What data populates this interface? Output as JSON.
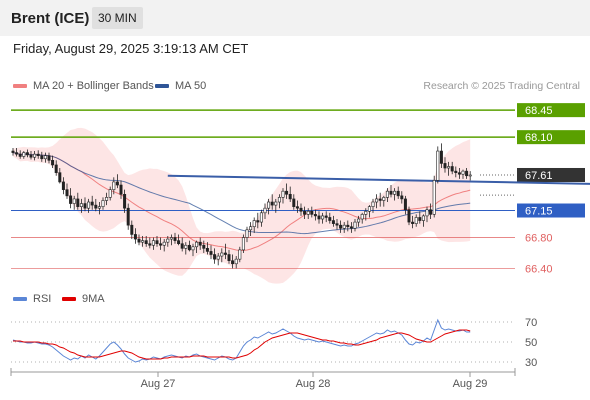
{
  "header": {
    "title": "Brent (ICE)",
    "interval": "30 MIN",
    "datetime": "Friday, August 29, 2025 3:19:13 AM CET"
  },
  "credit": "Research © 2025 Trading Central",
  "colors": {
    "bollinger": "#f08080",
    "band_fill": "#fde0e0",
    "ma50": "#2f5597",
    "resistance": "#5aa000",
    "support": "#2f5fc4",
    "minor_support": "#e06060",
    "current": "#333333",
    "rsi": "#5b86d6",
    "rsi_ma": "#e00000",
    "arrow": "#2f5fb0"
  },
  "legend": {
    "bollinger_label": "MA 20 + Bollinger Bands",
    "ma50_label": "MA 50",
    "rsi_label": "RSI",
    "rsi_ma_label": "9MA"
  },
  "chart_data": [
    {
      "type": "candlestick",
      "title": "Brent (ICE)",
      "interval": "30 MIN",
      "ylim": [
        66.25,
        68.62
      ],
      "x_ticks": [
        "Aug 27",
        "Aug 28",
        "Aug 29"
      ],
      "levels": [
        {
          "value": 68.45,
          "label": "68.45",
          "kind": "resistance"
        },
        {
          "value": 68.1,
          "label": "68.10",
          "kind": "resistance"
        },
        {
          "value": 67.61,
          "label": "67.61",
          "kind": "current"
        },
        {
          "value": 67.15,
          "label": "67.15",
          "kind": "support"
        },
        {
          "value": 66.8,
          "label": "66.80",
          "kind": "minor_support"
        },
        {
          "value": 66.4,
          "label": "66.40",
          "kind": "minor_support"
        }
      ],
      "trendline": [
        {
          "x": 43,
          "y": 67.6
        },
        {
          "x": 222,
          "y": 67.44
        }
      ],
      "arrow": {
        "from": {
          "x": 234,
          "y": 67.61
        },
        "to": {
          "x": 253,
          "y": 68.45
        }
      },
      "candles": [
        [
          67.92,
          67.96,
          67.86,
          67.9
        ],
        [
          67.9,
          67.96,
          67.85,
          67.88
        ],
        [
          67.88,
          67.93,
          67.82,
          67.85
        ],
        [
          67.85,
          67.92,
          67.82,
          67.9
        ],
        [
          67.9,
          67.94,
          67.84,
          67.87
        ],
        [
          67.87,
          67.92,
          67.81,
          67.84
        ],
        [
          67.84,
          67.92,
          67.8,
          67.88
        ],
        [
          67.88,
          67.93,
          67.82,
          67.86
        ],
        [
          67.86,
          67.91,
          67.78,
          67.82
        ],
        [
          67.82,
          67.9,
          67.77,
          67.86
        ],
        [
          67.86,
          67.9,
          67.76,
          67.8
        ],
        [
          67.8,
          67.86,
          67.7,
          67.74
        ],
        [
          67.74,
          67.8,
          67.6,
          67.64
        ],
        [
          67.64,
          67.7,
          67.5,
          67.52
        ],
        [
          67.52,
          67.58,
          67.36,
          67.42
        ],
        [
          67.42,
          67.5,
          67.3,
          67.34
        ],
        [
          67.34,
          67.44,
          67.18,
          67.24
        ],
        [
          67.24,
          67.34,
          67.16,
          67.3
        ],
        [
          67.3,
          67.38,
          67.16,
          67.2
        ],
        [
          67.2,
          67.3,
          67.12,
          67.24
        ],
        [
          67.24,
          67.32,
          67.14,
          67.18
        ],
        [
          67.18,
          67.3,
          67.12,
          67.26
        ],
        [
          67.26,
          67.34,
          67.16,
          67.22
        ],
        [
          67.22,
          67.3,
          67.14,
          67.18
        ],
        [
          67.18,
          67.26,
          67.1,
          67.2
        ],
        [
          67.2,
          67.32,
          67.16,
          67.28
        ],
        [
          67.28,
          67.38,
          67.22,
          67.32
        ],
        [
          67.32,
          67.46,
          67.28,
          67.42
        ],
        [
          67.42,
          67.58,
          67.36,
          67.52
        ],
        [
          67.52,
          67.62,
          67.44,
          67.48
        ],
        [
          67.48,
          67.54,
          67.3,
          67.36
        ],
        [
          67.36,
          67.42,
          67.12,
          67.18
        ],
        [
          67.18,
          67.24,
          66.9,
          66.96
        ],
        [
          66.96,
          67.02,
          66.78,
          66.84
        ],
        [
          66.84,
          66.92,
          66.72,
          66.78
        ],
        [
          66.78,
          66.84,
          66.7,
          66.74
        ],
        [
          66.74,
          66.82,
          66.68,
          66.76
        ],
        [
          66.76,
          66.82,
          66.68,
          66.72
        ],
        [
          66.72,
          66.8,
          66.66,
          66.7
        ],
        [
          66.7,
          66.8,
          66.64,
          66.76
        ],
        [
          66.76,
          66.82,
          66.68,
          66.72
        ],
        [
          66.72,
          66.8,
          66.64,
          66.7
        ],
        [
          66.7,
          66.78,
          66.62,
          66.74
        ],
        [
          66.74,
          66.82,
          66.68,
          66.78
        ],
        [
          66.78,
          66.84,
          66.7,
          66.8
        ],
        [
          66.8,
          66.86,
          66.72,
          66.76
        ],
        [
          66.76,
          66.84,
          66.7,
          66.72
        ],
        [
          66.72,
          66.8,
          66.62,
          66.66
        ],
        [
          66.66,
          66.74,
          66.58,
          66.7
        ],
        [
          66.7,
          66.76,
          66.62,
          66.64
        ],
        [
          66.64,
          66.72,
          66.56,
          66.68
        ],
        [
          66.68,
          66.76,
          66.6,
          66.74
        ],
        [
          66.74,
          66.8,
          66.64,
          66.7
        ],
        [
          66.7,
          66.76,
          66.6,
          66.66
        ],
        [
          66.66,
          66.74,
          66.58,
          66.62
        ],
        [
          66.62,
          66.7,
          66.52,
          66.58
        ],
        [
          66.58,
          66.66,
          66.46,
          66.52
        ],
        [
          66.52,
          66.6,
          66.44,
          66.56
        ],
        [
          66.56,
          66.66,
          66.48,
          66.6
        ],
        [
          66.6,
          66.72,
          66.52,
          66.58
        ],
        [
          66.58,
          66.64,
          66.46,
          66.5
        ],
        [
          66.5,
          66.58,
          66.4,
          66.46
        ],
        [
          66.46,
          66.56,
          66.4,
          66.52
        ],
        [
          66.52,
          66.68,
          66.48,
          66.64
        ],
        [
          66.64,
          66.84,
          66.6,
          66.8
        ],
        [
          66.8,
          66.94,
          66.74,
          66.9
        ],
        [
          66.9,
          67.0,
          66.82,
          66.94
        ],
        [
          66.94,
          67.06,
          66.86,
          67.02
        ],
        [
          67.02,
          67.12,
          66.92,
          67.0
        ],
        [
          67.0,
          67.16,
          66.94,
          67.12
        ],
        [
          67.12,
          67.24,
          67.04,
          67.18
        ],
        [
          67.18,
          67.3,
          67.1,
          67.26
        ],
        [
          67.26,
          67.36,
          67.16,
          67.22
        ],
        [
          67.22,
          67.3,
          67.12,
          67.26
        ],
        [
          67.26,
          67.36,
          67.18,
          67.32
        ],
        [
          67.32,
          67.44,
          67.24,
          67.4
        ],
        [
          67.4,
          67.5,
          67.3,
          67.36
        ],
        [
          67.36,
          67.46,
          67.26,
          67.3
        ],
        [
          67.3,
          67.36,
          67.16,
          67.2
        ],
        [
          67.2,
          67.28,
          67.12,
          67.18
        ],
        [
          67.18,
          67.24,
          67.08,
          67.14
        ],
        [
          67.14,
          67.2,
          67.04,
          67.1
        ],
        [
          67.1,
          67.18,
          67.04,
          67.14
        ],
        [
          67.14,
          67.2,
          67.06,
          67.1
        ],
        [
          67.1,
          67.16,
          67.02,
          67.08
        ],
        [
          67.08,
          67.14,
          66.98,
          67.04
        ],
        [
          67.04,
          67.12,
          66.98,
          67.08
        ],
        [
          67.08,
          67.14,
          67.0,
          67.06
        ],
        [
          67.06,
          67.12,
          66.98,
          67.02
        ],
        [
          67.02,
          67.08,
          66.94,
          66.98
        ],
        [
          66.98,
          67.04,
          66.9,
          66.96
        ],
        [
          66.96,
          67.02,
          66.86,
          66.92
        ],
        [
          66.92,
          67.0,
          66.86,
          66.96
        ],
        [
          66.96,
          67.02,
          66.88,
          66.94
        ],
        [
          66.94,
          67.0,
          66.86,
          66.92
        ],
        [
          66.92,
          67.04,
          66.88,
          67.0
        ],
        [
          67.0,
          67.08,
          66.94,
          67.04
        ],
        [
          67.04,
          67.12,
          66.98,
          67.1
        ],
        [
          67.1,
          67.18,
          67.02,
          67.14
        ],
        [
          67.14,
          67.22,
          67.06,
          67.2
        ],
        [
          67.2,
          67.3,
          67.12,
          67.26
        ],
        [
          67.26,
          67.36,
          67.18,
          67.3
        ],
        [
          67.3,
          67.38,
          67.2,
          67.28
        ],
        [
          67.28,
          67.34,
          67.2,
          67.32
        ],
        [
          67.32,
          67.44,
          67.26,
          67.4
        ],
        [
          67.4,
          67.48,
          67.32,
          67.36
        ],
        [
          67.36,
          67.44,
          67.28,
          67.4
        ],
        [
          67.4,
          67.46,
          67.3,
          67.34
        ],
        [
          67.34,
          67.4,
          67.24,
          67.3
        ],
        [
          67.3,
          67.34,
          67.1,
          67.16
        ],
        [
          67.16,
          67.2,
          66.96,
          67.0
        ],
        [
          67.0,
          67.08,
          66.92,
          66.98
        ],
        [
          66.98,
          67.1,
          66.94,
          67.06
        ],
        [
          67.06,
          67.14,
          66.98,
          67.02
        ],
        [
          67.02,
          67.1,
          66.94,
          67.08
        ],
        [
          67.08,
          67.2,
          67.0,
          67.16
        ],
        [
          67.16,
          67.24,
          67.04,
          67.1
        ],
        [
          67.1,
          67.6,
          67.06,
          67.54
        ],
        [
          67.54,
          67.98,
          67.5,
          67.92
        ],
        [
          67.92,
          68.02,
          67.7,
          67.76
        ],
        [
          67.76,
          67.84,
          67.64,
          67.7
        ],
        [
          67.7,
          67.78,
          67.6,
          67.72
        ],
        [
          67.72,
          67.78,
          67.62,
          67.66
        ],
        [
          67.66,
          67.72,
          67.58,
          67.64
        ],
        [
          67.64,
          67.7,
          67.56,
          67.62
        ],
        [
          67.62,
          67.68,
          67.56,
          67.66
        ],
        [
          67.66,
          67.7,
          67.56,
          67.6
        ],
        [
          67.6,
          67.66,
          67.54,
          67.61
        ]
      ]
    },
    {
      "type": "line",
      "title": "RSI",
      "ylim": [
        20,
        80
      ],
      "y_ticks": [
        70,
        50,
        30
      ],
      "series": [
        {
          "name": "RSI",
          "values": [
            52,
            51,
            50,
            50,
            49,
            49,
            50,
            49,
            48,
            48,
            47,
            45,
            42,
            39,
            36,
            34,
            32,
            34,
            33,
            36,
            34,
            37,
            35,
            33,
            36,
            40,
            44,
            48,
            50,
            47,
            43,
            38,
            34,
            32,
            30,
            31,
            33,
            32,
            33,
            35,
            34,
            33,
            35,
            36,
            37,
            36,
            35,
            34,
            36,
            35,
            37,
            38,
            36,
            35,
            34,
            33,
            32,
            34,
            36,
            35,
            33,
            32,
            34,
            40,
            46,
            50,
            52,
            55,
            54,
            56,
            58,
            60,
            58,
            59,
            61,
            63,
            61,
            59,
            56,
            54,
            53,
            52,
            53,
            52,
            51,
            50,
            51,
            50,
            49,
            48,
            47,
            46,
            47,
            46,
            46,
            48,
            49,
            51,
            53,
            55,
            57,
            59,
            58,
            59,
            62,
            60,
            61,
            59,
            57,
            52,
            48,
            47,
            50,
            49,
            51,
            54,
            52,
            62,
            72,
            64,
            62,
            63,
            62,
            61,
            61,
            62,
            60,
            60
          ]
        },
        {
          "name": "9MA",
          "values": [
            51,
            51,
            51,
            50,
            50,
            50,
            50,
            50,
            49,
            49,
            48,
            48,
            47,
            45,
            44,
            42,
            40,
            39,
            37,
            36,
            35,
            35,
            35,
            35,
            35,
            36,
            37,
            38,
            39,
            40,
            41,
            41,
            40,
            39,
            37,
            35,
            34,
            33,
            33,
            33,
            33,
            33,
            34,
            34,
            35,
            35,
            35,
            35,
            35,
            35,
            36,
            36,
            36,
            36,
            35,
            35,
            35,
            35,
            35,
            35,
            35,
            34,
            34,
            35,
            36,
            37,
            39,
            42,
            44,
            47,
            50,
            52,
            54,
            55,
            56,
            57,
            58,
            59,
            59,
            59,
            58,
            57,
            56,
            55,
            54,
            53,
            52,
            52,
            51,
            51,
            50,
            49,
            49,
            48,
            48,
            47,
            47,
            48,
            49,
            50,
            51,
            52,
            54,
            55,
            56,
            57,
            58,
            59,
            59,
            58,
            57,
            55,
            53,
            52,
            51,
            50,
            50,
            52,
            54,
            56,
            58,
            59,
            60,
            61,
            62,
            62,
            62,
            61
          ]
        }
      ]
    }
  ]
}
